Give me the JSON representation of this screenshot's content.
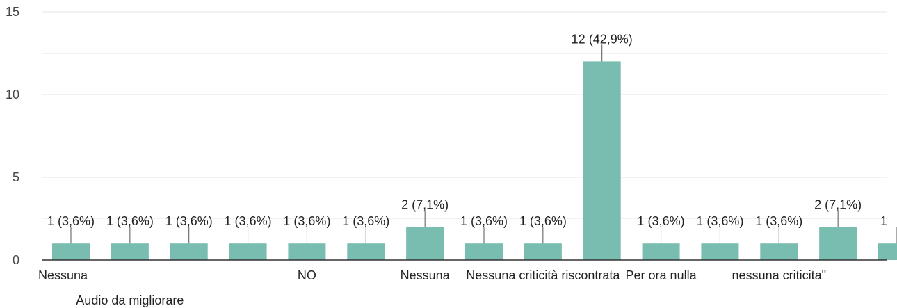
{
  "chart_data": {
    "type": "bar",
    "categories": [
      "Nessuna",
      "Audio da migliorare",
      "",
      "",
      "NO",
      "",
      "Nessuna",
      "",
      "Nessuna criticità riscontrata",
      "",
      "Per ora nulla",
      "",
      "nessuna criticita\"",
      "",
      ""
    ],
    "values": [
      1,
      1,
      1,
      1,
      1,
      1,
      2,
      1,
      1,
      12,
      1,
      1,
      1,
      2,
      1
    ],
    "data_labels": [
      "1 (3,6%)",
      "1 (3,6%)",
      "1 (3,6%)",
      "1 (3,6%)",
      "1 (3,6%)",
      "1 (3,6%)",
      "2 (7,1%)",
      "1 (3,6%)",
      "1 (3,6%)",
      "12 (42,9%)",
      "1 (3,6%)",
      "1 (3,6%)",
      "1 (3,6%)",
      "2 (7,1%)",
      "1"
    ],
    "yticks": [
      0,
      5,
      10,
      15
    ],
    "ylim": [
      0,
      15
    ],
    "grid": true,
    "colors": {
      "bar": "#79bcb0",
      "grid": "#e6e6e6",
      "axis": "#333333",
      "leader": "#555555"
    }
  }
}
